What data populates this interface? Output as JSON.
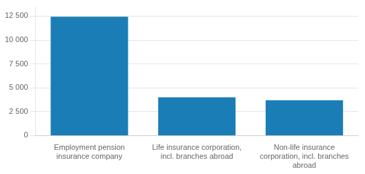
{
  "chart_data": {
    "type": "bar",
    "categories": [
      "Employment pension\ninsurance company",
      "Life insurance corporation,\nincl. branches abroad",
      "Non-life insurance\ncorporation, incl. branches\nabroad"
    ],
    "values": [
      12450,
      4000,
      3700
    ],
    "color": "#1a7db5",
    "ylim": [
      0,
      13500
    ],
    "yticks": [
      0,
      {
        "value": 2500,
        "label": "2 500"
      },
      {
        "value": 5000,
        "label": "5 000"
      },
      {
        "value": 7500,
        "label": "7 500"
      },
      {
        "value": 10000,
        "label": "10 000"
      },
      {
        "value": 12500,
        "label": "12 500"
      }
    ],
    "grid": true
  }
}
